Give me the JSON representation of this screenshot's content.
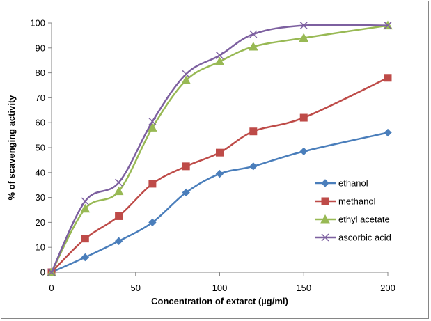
{
  "chart_data": {
    "type": "line",
    "title": "",
    "xlabel": "Concentration of extarct (µg/ml)",
    "ylabel": "% of scavenging activity",
    "x": [
      0,
      20,
      40,
      60,
      80,
      100,
      120,
      150,
      200
    ],
    "xticks": [
      0,
      50,
      100,
      150,
      200
    ],
    "xlim": [
      0,
      200
    ],
    "yticks": [
      0,
      10,
      20,
      30,
      40,
      50,
      60,
      70,
      80,
      90,
      100
    ],
    "ylim": [
      0,
      100
    ],
    "grid": false,
    "legend_position": "right",
    "series": [
      {
        "name": "ethanol",
        "color": "#4a7ebb",
        "marker": "diamond",
        "values": [
          0,
          6,
          12.5,
          20,
          32,
          39.5,
          42.5,
          48.5,
          56
        ]
      },
      {
        "name": "methanol",
        "color": "#be4b48",
        "marker": "square",
        "values": [
          0,
          13.5,
          22.5,
          35.5,
          42.5,
          48,
          56.5,
          62,
          78
        ]
      },
      {
        "name": "ethyl acetate",
        "color": "#98b954",
        "marker": "triangle",
        "values": [
          0,
          25.5,
          32.5,
          58,
          77,
          84.5,
          90.5,
          94,
          99
        ]
      },
      {
        "name": "ascorbic acid",
        "color": "#7d60a0",
        "marker": "x",
        "values": [
          0,
          28.5,
          36,
          60.5,
          79.5,
          87,
          95.5,
          99,
          99
        ]
      }
    ]
  }
}
